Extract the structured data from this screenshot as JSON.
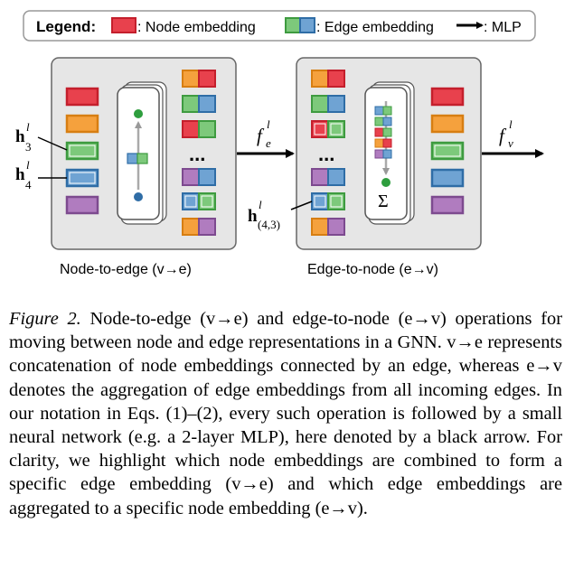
{
  "legend": {
    "title": "Legend:",
    "node_item": ": Node embedding",
    "edge_item": ": Edge embedding",
    "mlp_item": ": MLP"
  },
  "panels": {
    "left_label": "Node-to-edge (v→e)",
    "right_label": "Edge-to-node (e→v)"
  },
  "symbols": {
    "h3": "h",
    "h3_sub": "3",
    "h3_sup": "l",
    "h4": "h",
    "h4_sub": "4",
    "h4_sup": "l",
    "h43": "h",
    "h43_sub": "(4,3)",
    "h43_sup": "l",
    "fe": "f",
    "fe_sub": "e",
    "fe_sup": "l",
    "fv": "f",
    "fv_sub": "v",
    "fv_sup": "l",
    "dots": "...",
    "sum": "Σ"
  },
  "colors": {
    "red": "#e8414d",
    "orange": "#f5a13d",
    "green": "#7dc97b",
    "blue": "#6fa3d3",
    "purple": "#b07cbf",
    "panel_bg": "#e6e6e6",
    "node_dot_green": "#2e9e3e",
    "node_dot_blue": "#2f6da6"
  },
  "caption": {
    "label": "Figure 2.",
    "body": " Node-to-edge (v→e) and edge-to-node (e→v) operations for moving between node and edge representations in a GNN. v→e represents concatenation of node embeddings connected by an edge, whereas e→v denotes the aggregation of edge embeddings from all incoming edges. In our notation in Eqs. (1)–(2), every such operation is followed by a small neural network (e.g. a 2-layer MLP), here denoted by a black arrow. For clarity, we highlight which node embeddings are combined to form a specific edge embedding (v→e) and which edge embeddings are aggregated to a specific node embedding (e→v)."
  }
}
